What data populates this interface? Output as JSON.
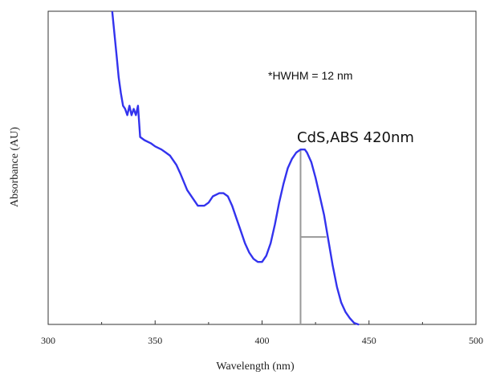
{
  "chart_data": {
    "type": "line",
    "title": "",
    "xlabel": "Wavelength (nm)",
    "ylabel": "Absorbance (AU)",
    "xlim": [
      300,
      500
    ],
    "ylim": [
      0,
      1
    ],
    "x_ticks": [
      "300",
      "350",
      "400",
      "450",
      "500"
    ],
    "y_ticks_labeled": false,
    "grid": false,
    "series_color": "#3333ee",
    "series": [
      {
        "x": [
          330,
          331,
          332,
          333,
          334,
          335,
          336,
          337,
          338,
          339,
          340,
          341,
          342,
          343,
          345,
          348,
          350,
          353,
          355,
          357,
          360,
          362,
          365,
          368,
          370,
          373,
          375,
          377,
          380,
          382,
          384,
          386,
          388,
          390,
          392,
          394,
          396,
          398,
          400,
          402,
          404,
          406,
          408,
          410,
          412,
          414,
          416,
          418,
          419,
          420,
          421,
          423,
          425,
          427,
          429,
          431,
          433,
          435,
          437,
          439,
          441,
          443,
          445
        ],
        "values": [
          1.0,
          0.93,
          0.86,
          0.79,
          0.74,
          0.7,
          0.69,
          0.67,
          0.7,
          0.67,
          0.69,
          0.67,
          0.7,
          0.6,
          0.59,
          0.58,
          0.57,
          0.56,
          0.55,
          0.54,
          0.51,
          0.48,
          0.43,
          0.4,
          0.38,
          0.38,
          0.39,
          0.41,
          0.42,
          0.42,
          0.41,
          0.38,
          0.34,
          0.3,
          0.26,
          0.23,
          0.21,
          0.2,
          0.2,
          0.22,
          0.26,
          0.32,
          0.39,
          0.45,
          0.5,
          0.53,
          0.55,
          0.56,
          0.56,
          0.56,
          0.55,
          0.52,
          0.47,
          0.41,
          0.35,
          0.27,
          0.19,
          0.12,
          0.07,
          0.04,
          0.02,
          0.005,
          0.0
        ]
      }
    ],
    "peak_marker": {
      "x": 418,
      "y": 0.56
    },
    "hwhm_marker": {
      "x_start": 418,
      "x_end": 430,
      "y": 0.28
    },
    "annotations": [
      "*HWHM = 12 nm",
      "CdS,ABS 420nm"
    ]
  }
}
